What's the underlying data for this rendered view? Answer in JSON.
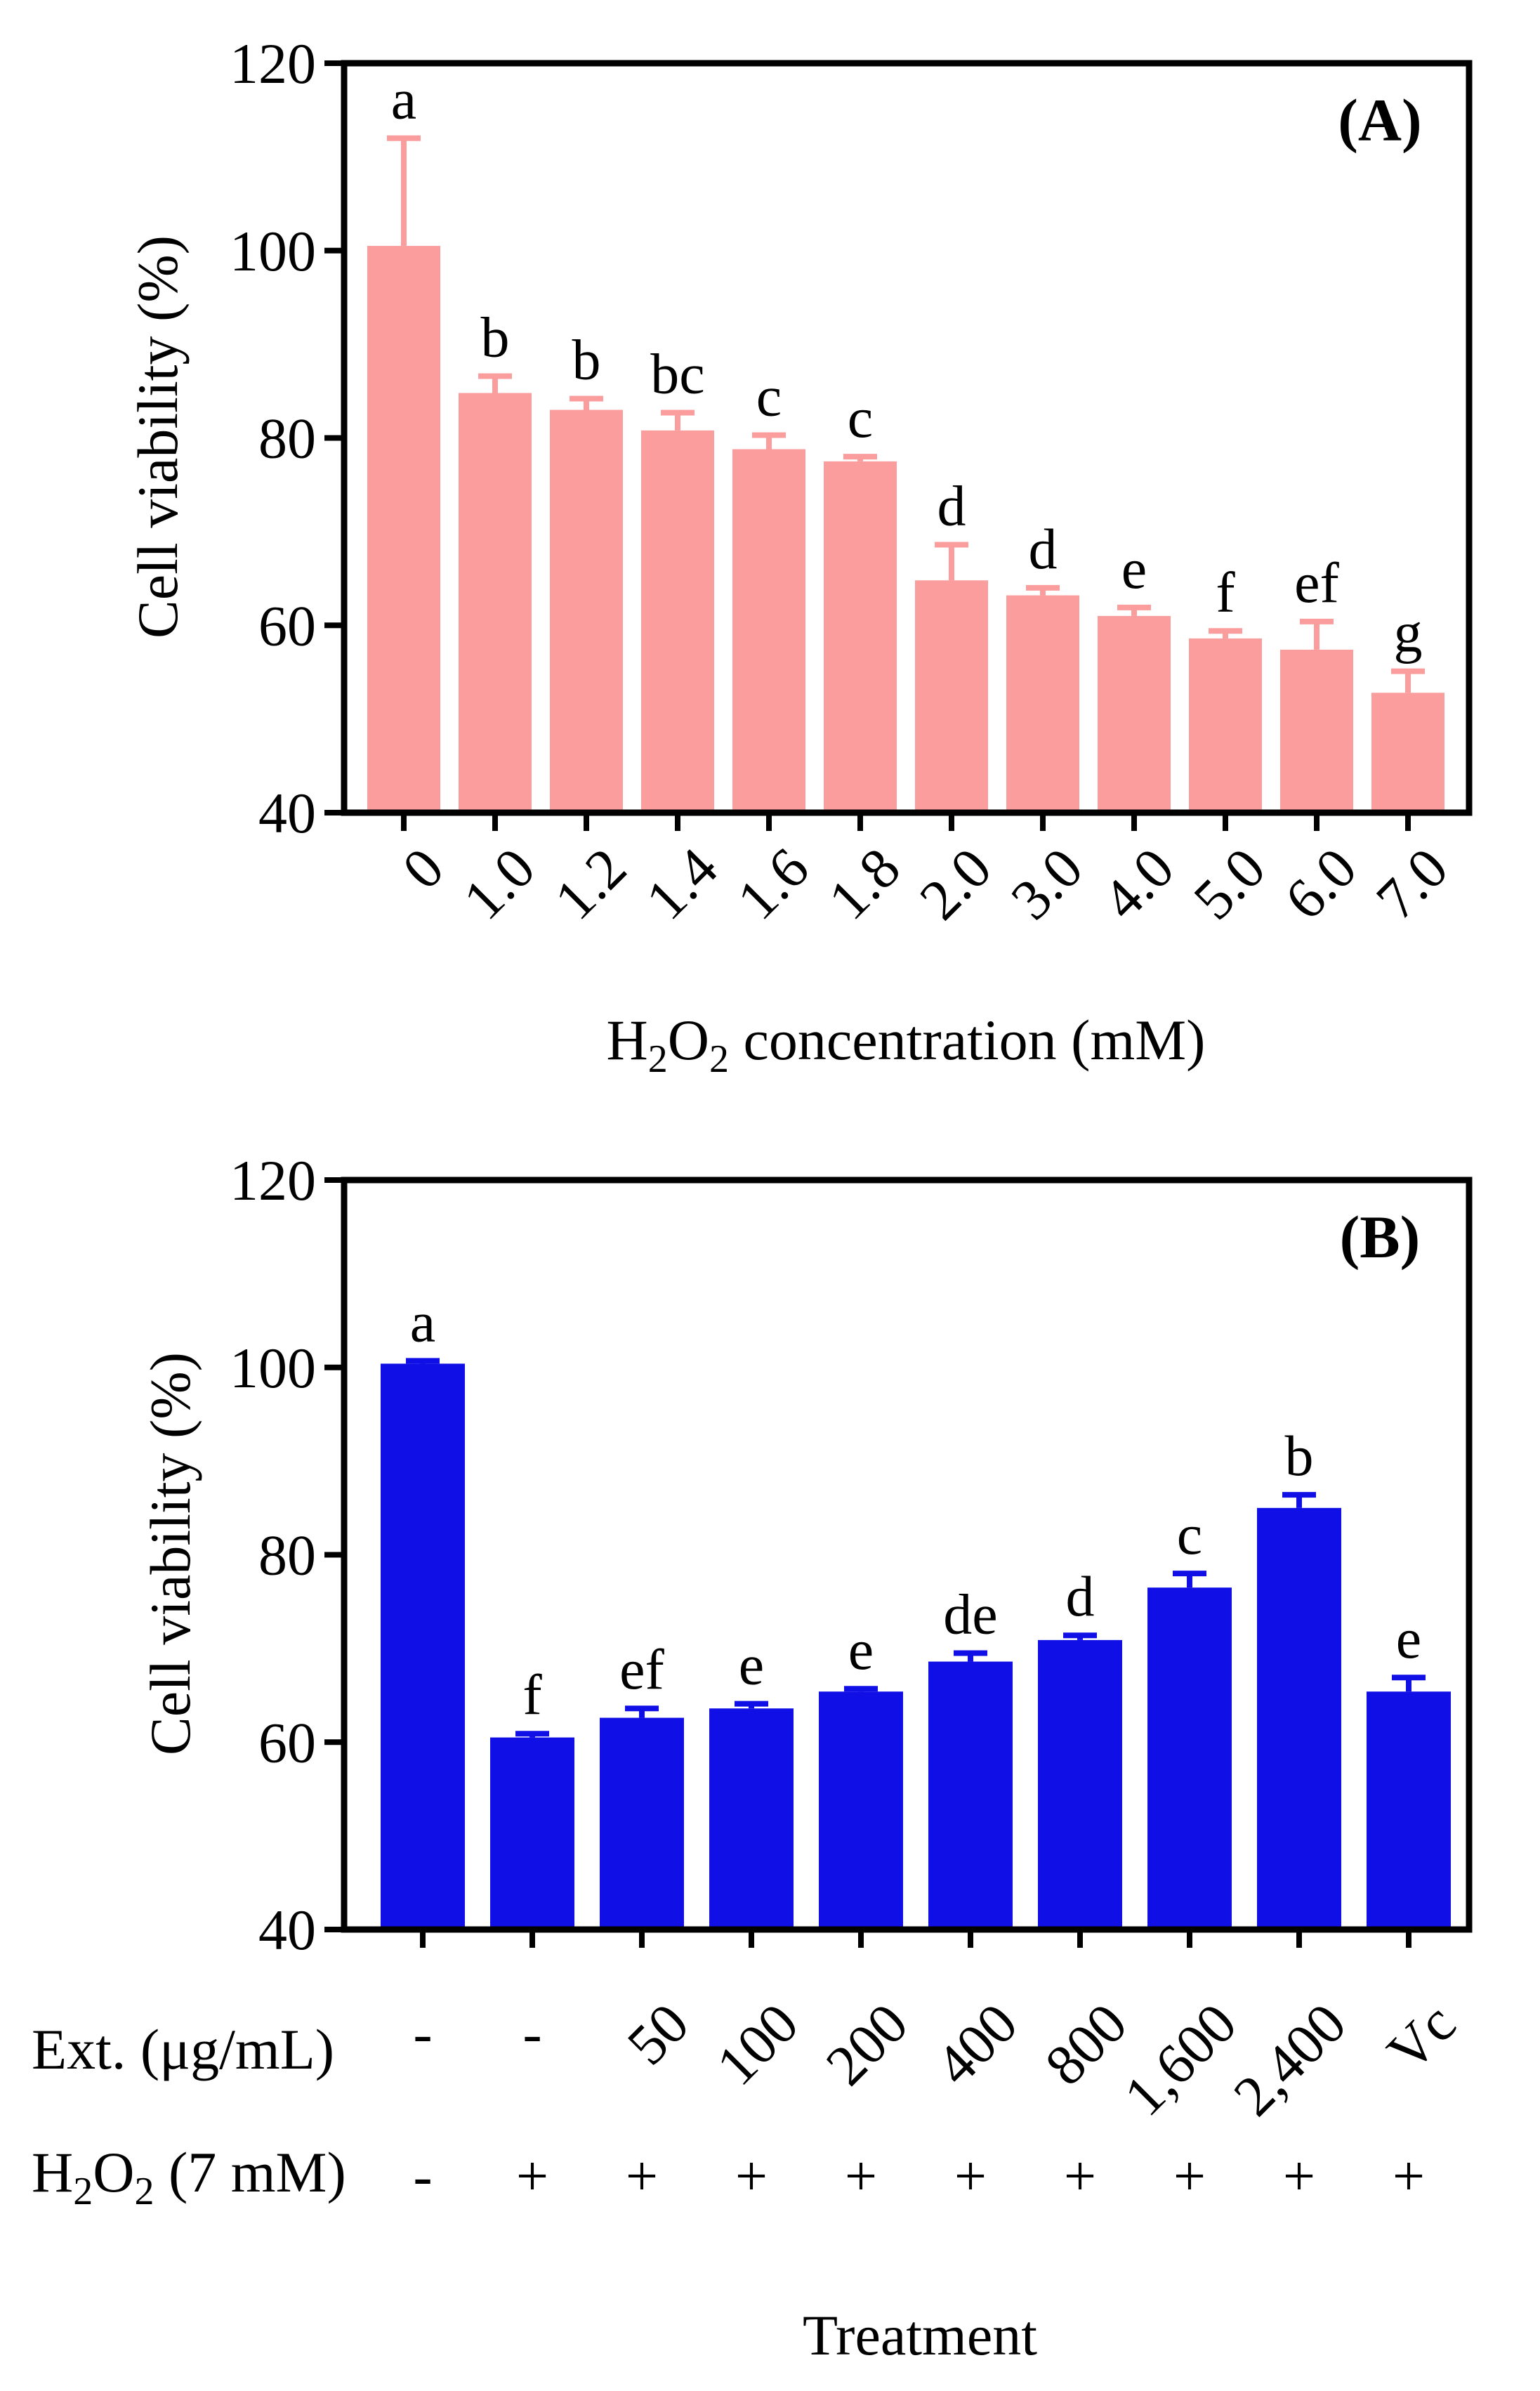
{
  "colors": {
    "panel_a_bar": "#FC9D9D",
    "panel_b_bar": "#1010E6",
    "axis": "#000000"
  },
  "chart_data": [
    {
      "type": "bar",
      "panel_label": "(A)",
      "ylabel": "Cell viability (%)",
      "xlabel": "H₂O₂ concentration (mM)",
      "xlabel_parts": {
        "a": "H",
        "sub1": "2",
        "b": "O",
        "sub2": "2",
        "c": " concentration (mM)"
      },
      "ylim": [
        40,
        120
      ],
      "yticks": [
        40,
        60,
        80,
        100,
        120
      ],
      "categories": [
        "0",
        "1.0",
        "1.2",
        "1.4",
        "1.6",
        "1.8",
        "2.0",
        "3.0",
        "4.0",
        "5.0",
        "6.0",
        "7.0"
      ],
      "values": [
        100.5,
        84.8,
        83.0,
        80.8,
        78.8,
        77.5,
        64.8,
        63.2,
        61.0,
        58.6,
        57.4,
        52.8
      ],
      "errors": [
        11.5,
        1.8,
        1.2,
        1.9,
        1.5,
        0.5,
        3.8,
        0.8,
        0.9,
        0.8,
        3.0,
        2.3
      ],
      "significance": [
        "a",
        "b",
        "b",
        "bc",
        "c",
        "c",
        "d",
        "d",
        "e",
        "f",
        "ef",
        "g"
      ]
    },
    {
      "type": "bar",
      "panel_label": "(B)",
      "ylabel": "Cell viability (%)",
      "xlabel": "Treatment",
      "ylim": [
        40,
        120
      ],
      "yticks": [
        40,
        60,
        80,
        100,
        120
      ],
      "ext_row_label": "Ext. (μg/mL)",
      "h2o2_row_label_parts": {
        "a": "H",
        "sub1": "2",
        "b": "O",
        "sub2": "2",
        "c": " (7 mM)"
      },
      "ext_values": [
        "-",
        "-",
        "50",
        "100",
        "200",
        "400",
        "800",
        "1,600",
        "2,400",
        "Vc"
      ],
      "h2o2_values": [
        "-",
        "+",
        "+",
        "+",
        "+",
        "+",
        "+",
        "+",
        "+",
        "+"
      ],
      "values": [
        100.4,
        60.5,
        62.6,
        63.6,
        65.4,
        68.6,
        70.9,
        76.5,
        85.0,
        65.4
      ],
      "errors": [
        0.3,
        0.4,
        1.0,
        0.5,
        0.3,
        0.9,
        0.5,
        1.5,
        1.4,
        1.5
      ],
      "significance": [
        "a",
        "f",
        "ef",
        "e",
        "e",
        "de",
        "d",
        "c",
        "b",
        "e"
      ]
    }
  ]
}
